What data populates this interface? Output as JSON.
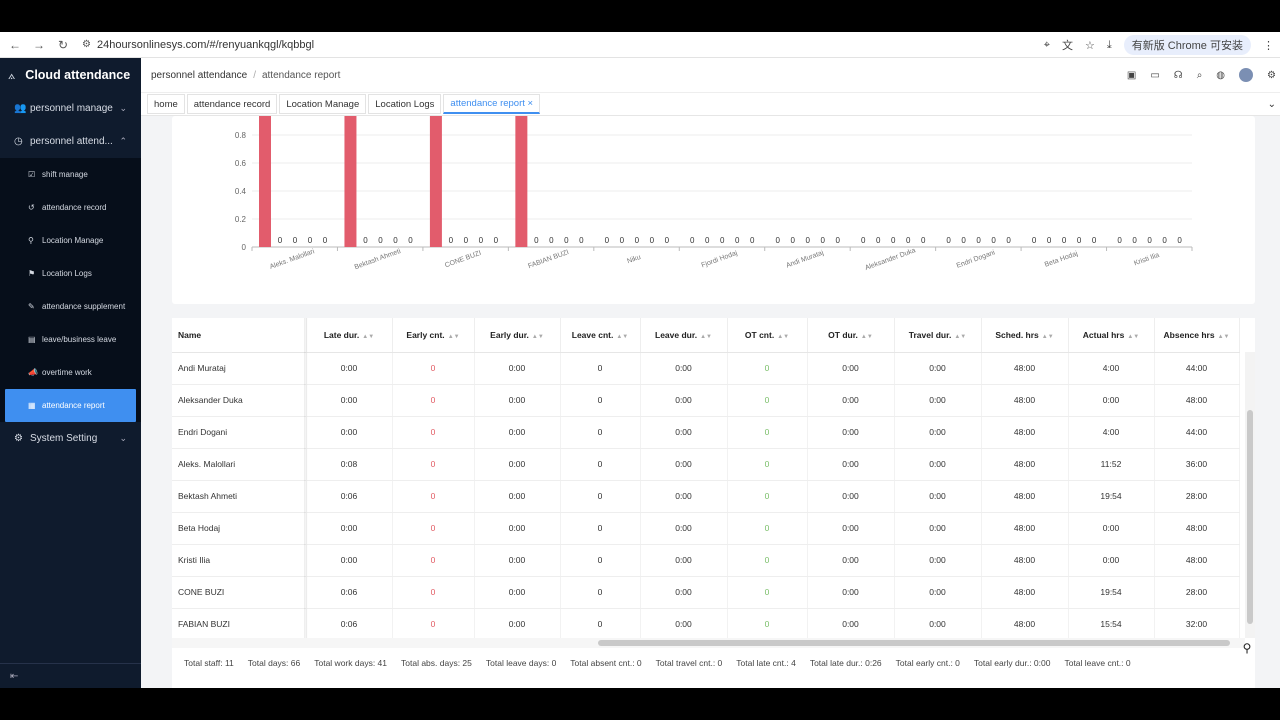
{
  "browser": {
    "url": "24hoursonlinesys.com/#/renyuankqgl/kqbbgl",
    "update_label": "有新版 Chrome 可安装"
  },
  "sidebar": {
    "app_title": "Cloud attendance",
    "groups": [
      {
        "label": "personnel manage",
        "icon": "users-icon"
      },
      {
        "label": "personnel attend...",
        "icon": "clock-icon"
      },
      {
        "label": "System Setting",
        "icon": "gear-icon"
      }
    ],
    "subitems": [
      {
        "label": "shift manage",
        "icon": "calendar-check-icon"
      },
      {
        "label": "attendance record",
        "icon": "history-icon"
      },
      {
        "label": "Location Manage",
        "icon": "pin-icon"
      },
      {
        "label": "Location Logs",
        "icon": "flag-icon"
      },
      {
        "label": "attendance supplement",
        "icon": "pen-icon"
      },
      {
        "label": "leave/business leave",
        "icon": "document-icon"
      },
      {
        "label": "overtime work",
        "icon": "megaphone-icon"
      },
      {
        "label": "attendance report",
        "icon": "report-icon"
      }
    ]
  },
  "header": {
    "crumb1": "personnel attendance",
    "sep": "/",
    "crumb2": "attendance report"
  },
  "tabs": [
    {
      "label": "home"
    },
    {
      "label": "attendance record"
    },
    {
      "label": "Location Manage"
    },
    {
      "label": "Location Logs"
    },
    {
      "label": "attendance report ×"
    }
  ],
  "chart_data": {
    "type": "bar",
    "categories": [
      "Aleks. Malollari",
      "Bektash Ahmeti",
      "CONE BUZI",
      "FABIAN BUZI",
      "Niku",
      "Fjordi Hodaj",
      "Andi Murataj",
      "Aleksander Duka",
      "Endri Dogani",
      "Beta Hodaj",
      "Kristi Ilia"
    ],
    "series": [
      {
        "values": [
          1,
          1,
          1,
          1,
          0,
          0,
          0,
          0,
          0,
          0,
          0
        ]
      },
      {
        "values": [
          0,
          0,
          0,
          0,
          0,
          0,
          0,
          0,
          0,
          0,
          0
        ]
      },
      {
        "values": [
          0,
          0,
          0,
          0,
          0,
          0,
          0,
          0,
          0,
          0,
          0
        ]
      },
      {
        "values": [
          0,
          0,
          0,
          0,
          0,
          0,
          0,
          0,
          0,
          0,
          0
        ]
      },
      {
        "values": [
          0,
          0,
          0,
          0,
          0,
          0,
          0,
          0,
          0,
          0,
          0
        ]
      }
    ],
    "yticks": [
      "0",
      "0.2",
      "0.4",
      "0.6",
      "0.8"
    ],
    "ylim": [
      0,
      1
    ],
    "bar_color": "#e25c6c"
  },
  "table": {
    "columns": [
      "Name",
      "Late dur.",
      "Early cnt.",
      "Early dur.",
      "Leave cnt.",
      "Leave dur.",
      "OT cnt.",
      "OT dur.",
      "Travel dur.",
      "Sched. hrs",
      "Actual hrs",
      "Absence hrs"
    ],
    "rows": [
      [
        "Andi Murataj",
        "0:00",
        "0",
        "0:00",
        "0",
        "0:00",
        "0",
        "0:00",
        "0:00",
        "48:00",
        "4:00",
        "44:00"
      ],
      [
        "Aleksander Duka",
        "0:00",
        "0",
        "0:00",
        "0",
        "0:00",
        "0",
        "0:00",
        "0:00",
        "48:00",
        "0:00",
        "48:00"
      ],
      [
        "Endri Dogani",
        "0:00",
        "0",
        "0:00",
        "0",
        "0:00",
        "0",
        "0:00",
        "0:00",
        "48:00",
        "4:00",
        "44:00"
      ],
      [
        "Aleks. Malollari",
        "0:08",
        "0",
        "0:00",
        "0",
        "0:00",
        "0",
        "0:00",
        "0:00",
        "48:00",
        "11:52",
        "36:00"
      ],
      [
        "Bektash Ahmeti",
        "0:06",
        "0",
        "0:00",
        "0",
        "0:00",
        "0",
        "0:00",
        "0:00",
        "48:00",
        "19:54",
        "28:00"
      ],
      [
        "Beta Hodaj",
        "0:00",
        "0",
        "0:00",
        "0",
        "0:00",
        "0",
        "0:00",
        "0:00",
        "48:00",
        "0:00",
        "48:00"
      ],
      [
        "Kristi Ilia",
        "0:00",
        "0",
        "0:00",
        "0",
        "0:00",
        "0",
        "0:00",
        "0:00",
        "48:00",
        "0:00",
        "48:00"
      ],
      [
        "CONE BUZI",
        "0:06",
        "0",
        "0:00",
        "0",
        "0:00",
        "0",
        "0:00",
        "0:00",
        "48:00",
        "19:54",
        "28:00"
      ],
      [
        "FABIAN BUZI",
        "0:06",
        "0",
        "0:00",
        "0",
        "0:00",
        "0",
        "0:00",
        "0:00",
        "48:00",
        "15:54",
        "32:00"
      ]
    ]
  },
  "summary": [
    "Total staff: 11",
    "Total days: 66",
    "Total work days: 41",
    "Total abs. days: 25",
    "Total leave days: 0",
    "Total absent cnt.: 0",
    "Total travel cnt.: 0",
    "Total late cnt.: 4",
    "Total late dur.: 0:26",
    "Total early cnt.: 0",
    "Total early dur.: 0:00",
    "Total leave cnt.: 0"
  ]
}
